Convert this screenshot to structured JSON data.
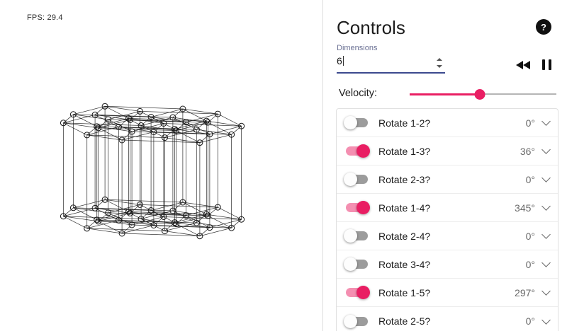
{
  "canvas": {
    "fps_label": "FPS: 29.4"
  },
  "panel": {
    "title": "Controls",
    "help_label": "?",
    "help_icon": "question-mark-icon",
    "dimensions": {
      "label": "Dimensions",
      "value": "6"
    },
    "playback": {
      "rewind_icon": "rewind-icon",
      "pause_icon": "pause-icon"
    },
    "velocity": {
      "label": "Velocity:",
      "percent": 48
    },
    "colors": {
      "accent": "#e91e63",
      "accent_light": "#f48fb1",
      "switch_off_track": "#9c9c9c",
      "underline": "#3c4a8e",
      "list_border": "#e0e0e0"
    }
  },
  "rotations": [
    {
      "label": "Rotate 1-2?",
      "on": false,
      "value": "0°"
    },
    {
      "label": "Rotate 1-3?",
      "on": true,
      "value": "36°"
    },
    {
      "label": "Rotate 2-3?",
      "on": false,
      "value": "0°"
    },
    {
      "label": "Rotate 1-4?",
      "on": true,
      "value": "345°"
    },
    {
      "label": "Rotate 2-4?",
      "on": false,
      "value": "0°"
    },
    {
      "label": "Rotate 3-4?",
      "on": false,
      "value": "0°"
    },
    {
      "label": "Rotate 1-5?",
      "on": true,
      "value": "297°"
    },
    {
      "label": "Rotate 2-5?",
      "on": false,
      "value": "0°"
    }
  ]
}
